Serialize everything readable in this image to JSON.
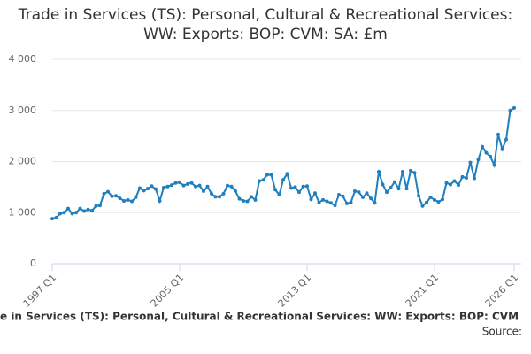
{
  "chart_data": {
    "type": "line",
    "title": "Trade in Services (TS): Personal, Cultural & Recreational Services: WW: Exports: BOP: CVM: SA: £m",
    "footer": "e in Services (TS): Personal, Cultural & Recreational Services: WW: Exports: BOP: CVM",
    "source": "Source:",
    "categories": [
      "1997 Q1",
      null,
      null,
      null,
      null,
      null,
      null,
      null,
      null,
      null,
      null,
      null,
      null,
      null,
      null,
      null,
      null,
      null,
      null,
      null,
      null,
      null,
      null,
      null,
      null,
      null,
      null,
      null,
      null,
      null,
      null,
      null,
      "2005 Q1",
      null,
      null,
      null,
      null,
      null,
      null,
      null,
      null,
      null,
      null,
      null,
      null,
      null,
      null,
      null,
      null,
      null,
      null,
      null,
      null,
      null,
      null,
      null,
      null,
      null,
      null,
      null,
      null,
      null,
      null,
      null,
      "2013 Q1",
      null,
      null,
      null,
      null,
      null,
      null,
      null,
      null,
      null,
      null,
      null,
      null,
      null,
      null,
      null,
      null,
      null,
      null,
      null,
      null,
      null,
      null,
      null,
      null,
      null,
      null,
      null,
      null,
      null,
      null,
      null,
      "2021 Q1",
      null,
      null,
      null,
      null,
      null,
      null,
      null,
      null,
      null,
      null,
      null,
      null,
      null,
      null,
      null,
      null,
      null,
      null,
      null,
      "2026 Q1"
    ],
    "values": [
      880,
      900,
      980,
      1000,
      1080,
      980,
      1000,
      1080,
      1030,
      1060,
      1040,
      1130,
      1140,
      1370,
      1410,
      1320,
      1330,
      1280,
      1230,
      1250,
      1220,
      1300,
      1480,
      1430,
      1470,
      1520,
      1460,
      1230,
      1490,
      1510,
      1540,
      1580,
      1590,
      1530,
      1560,
      1580,
      1510,
      1530,
      1420,
      1510,
      1370,
      1310,
      1310,
      1370,
      1530,
      1510,
      1420,
      1270,
      1230,
      1220,
      1310,
      1250,
      1620,
      1640,
      1740,
      1740,
      1450,
      1350,
      1640,
      1760,
      1480,
      1500,
      1400,
      1510,
      1520,
      1260,
      1380,
      1200,
      1250,
      1220,
      1190,
      1140,
      1350,
      1320,
      1180,
      1200,
      1420,
      1400,
      1300,
      1380,
      1280,
      1190,
      1800,
      1550,
      1400,
      1490,
      1600,
      1470,
      1800,
      1470,
      1820,
      1780,
      1330,
      1130,
      1200,
      1300,
      1250,
      1210,
      1260,
      1580,
      1550,
      1620,
      1540,
      1700,
      1680,
      1980,
      1670,
      2040,
      2290,
      2170,
      2100,
      1930,
      2530,
      2240,
      2430,
      3000,
      3050
    ],
    "color": "#1f7fbf",
    "ylim": [
      0,
      4000
    ],
    "yticks": [
      0,
      {
        "value": 1000,
        "label": "1 000"
      },
      {
        "value": 2000,
        "label": "2 000"
      },
      {
        "value": 3000,
        "label": "3 000"
      },
      {
        "value": 4000,
        "label": "4 000"
      }
    ],
    "grid": true
  }
}
